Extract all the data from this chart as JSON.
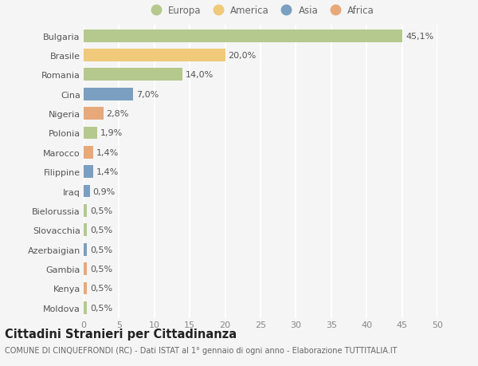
{
  "countries": [
    "Bulgaria",
    "Brasile",
    "Romania",
    "Cina",
    "Nigeria",
    "Polonia",
    "Marocco",
    "Filippine",
    "Iraq",
    "Bielorussia",
    "Slovacchia",
    "Azerbaigian",
    "Gambia",
    "Kenya",
    "Moldova"
  ],
  "values": [
    45.1,
    20.0,
    14.0,
    7.0,
    2.8,
    1.9,
    1.4,
    1.4,
    0.9,
    0.5,
    0.5,
    0.5,
    0.5,
    0.5,
    0.5
  ],
  "labels": [
    "45,1%",
    "20,0%",
    "14,0%",
    "7,0%",
    "2,8%",
    "1,9%",
    "1,4%",
    "1,4%",
    "0,9%",
    "0,5%",
    "0,5%",
    "0,5%",
    "0,5%",
    "0,5%",
    "0,5%"
  ],
  "continents": [
    "Europa",
    "America",
    "Europa",
    "Asia",
    "Africa",
    "Europa",
    "Africa",
    "Asia",
    "Asia",
    "Europa",
    "Europa",
    "Asia",
    "Africa",
    "Africa",
    "Europa"
  ],
  "continent_colors": {
    "Europa": "#b5c98e",
    "America": "#f0c97a",
    "Asia": "#7a9fc0",
    "Africa": "#e8a97a"
  },
  "legend_order": [
    "Europa",
    "America",
    "Asia",
    "Africa"
  ],
  "xlim": [
    0,
    50
  ],
  "xticks": [
    0,
    5,
    10,
    15,
    20,
    25,
    30,
    35,
    40,
    45,
    50
  ],
  "title": "Cittadini Stranieri per Cittadinanza",
  "subtitle": "COMUNE DI CINQUEFRONDI (RC) - Dati ISTAT al 1° gennaio di ogni anno - Elaborazione TUTTITALIA.IT",
  "bg_color": "#f5f5f5",
  "bar_height": 0.65,
  "grid_color": "#ffffff",
  "label_fontsize": 8,
  "tick_fontsize": 8,
  "title_fontsize": 10.5,
  "subtitle_fontsize": 7
}
